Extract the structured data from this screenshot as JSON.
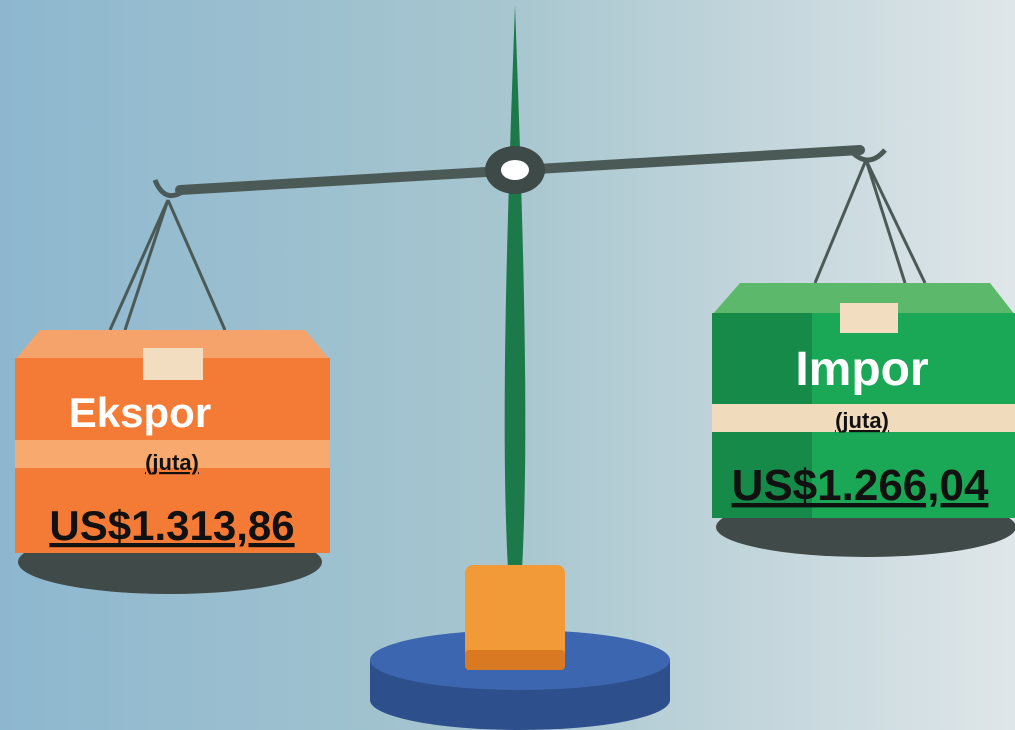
{
  "left": {
    "label": "Ekspor",
    "unit": "(juta)",
    "value": "US$1.313,86"
  },
  "right": {
    "label": "Impor",
    "unit": "(juta)",
    "value": "US$1.266,04"
  }
}
